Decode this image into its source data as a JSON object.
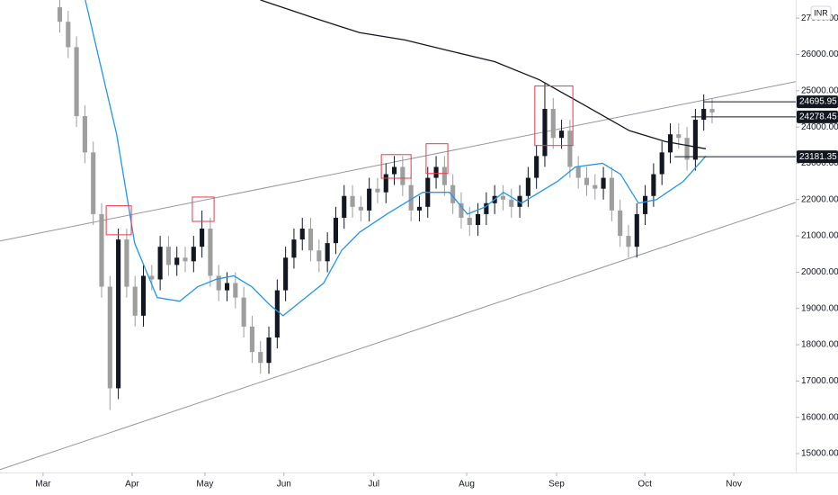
{
  "chart_data": {
    "type": "candlestick",
    "currency": "INR",
    "x": [
      4,
      6,
      8,
      10,
      12,
      14,
      16,
      18,
      20,
      22,
      24,
      26,
      28,
      30,
      32,
      34,
      36,
      38,
      40,
      42,
      44,
      46,
      48,
      50,
      52,
      54,
      56,
      58,
      60,
      62,
      64,
      66,
      68,
      70,
      72,
      74,
      76,
      78,
      80,
      82,
      84,
      86,
      88,
      90,
      92,
      94,
      96,
      98,
      100,
      102,
      104,
      106,
      108,
      110,
      112,
      114,
      116,
      118,
      120,
      122,
      124,
      126,
      128,
      130,
      132,
      134,
      136,
      138,
      140,
      142,
      144,
      146,
      148,
      150,
      152,
      154,
      156,
      158,
      160
    ],
    "open": [
      27300,
      26900,
      26200,
      24300,
      23300,
      21600,
      19600,
      16800,
      20900,
      19600,
      18800,
      19900,
      19800,
      20700,
      20200,
      20400,
      20300,
      20700,
      21200,
      19900,
      19500,
      19700,
      19300,
      18500,
      17800,
      17500,
      18200,
      19500,
      20400,
      20900,
      21200,
      20600,
      20300,
      20800,
      21500,
      22100,
      21800,
      21700,
      22300,
      22200,
      22700,
      22900,
      22400,
      21700,
      21800,
      22600,
      22900,
      22400,
      21900,
      21500,
      21300,
      21600,
      21900,
      22100,
      22000,
      21800,
      22100,
      22600,
      23200,
      24500,
      23700,
      23900,
      22900,
      22600,
      22400,
      22300,
      22600,
      21700,
      21000,
      20700,
      21600,
      22100,
      22700,
      23300,
      23800,
      23700,
      23100,
      24200,
      24500
    ],
    "high": [
      27600,
      27200,
      26500,
      24600,
      23600,
      21900,
      19900,
      21200,
      21200,
      19900,
      20200,
      20200,
      21000,
      21000,
      20700,
      20700,
      21000,
      21700,
      21500,
      20200,
      20000,
      20000,
      19600,
      18800,
      18100,
      18500,
      19800,
      20700,
      21200,
      21500,
      21500,
      20900,
      21100,
      21800,
      22400,
      22400,
      22100,
      22600,
      22600,
      23000,
      23200,
      23200,
      22700,
      22100,
      22900,
      23200,
      23200,
      22700,
      22200,
      21800,
      21900,
      22200,
      22400,
      22400,
      22300,
      22400,
      22900,
      23500,
      25200,
      24800,
      24200,
      24200,
      23200,
      22900,
      22700,
      22900,
      22900,
      22000,
      21300,
      21900,
      22400,
      23000,
      23600,
      24100,
      24100,
      24000,
      24500,
      24900,
      24800
    ],
    "low": [
      26600,
      25900,
      24000,
      23000,
      21300,
      19300,
      16200,
      16500,
      19300,
      18500,
      18500,
      19500,
      19500,
      19900,
      19900,
      20000,
      20000,
      20400,
      19600,
      19200,
      19200,
      19000,
      18200,
      17500,
      17200,
      17200,
      17900,
      19200,
      20100,
      20600,
      20300,
      20000,
      20000,
      20500,
      21200,
      21500,
      21400,
      21400,
      21900,
      21900,
      22400,
      22100,
      21400,
      21400,
      21500,
      22300,
      22100,
      21600,
      21200,
      21000,
      21000,
      21300,
      21600,
      21700,
      21500,
      21500,
      21800,
      22300,
      22900,
      23400,
      23400,
      22600,
      22300,
      22100,
      22000,
      22000,
      21400,
      20700,
      20400,
      20400,
      21300,
      21800,
      22400,
      23000,
      23400,
      22800,
      22800,
      23900,
      24100
    ],
    "close": [
      26900,
      26200,
      24300,
      23300,
      21600,
      19600,
      16800,
      20900,
      19600,
      18800,
      19900,
      19800,
      20700,
      20200,
      20400,
      20300,
      20700,
      21200,
      19900,
      19500,
      19700,
      19300,
      18500,
      17800,
      17500,
      18200,
      19500,
      20400,
      20900,
      21200,
      20600,
      20300,
      20800,
      21500,
      22100,
      21800,
      21700,
      22300,
      22200,
      22700,
      22900,
      22400,
      21700,
      21800,
      22600,
      22900,
      22400,
      21900,
      21500,
      21300,
      21600,
      21900,
      22100,
      22000,
      21800,
      22100,
      22600,
      23200,
      24500,
      23700,
      23900,
      22900,
      22600,
      22400,
      22300,
      22600,
      21700,
      21000,
      20700,
      21600,
      22100,
      22700,
      23300,
      23800,
      23700,
      23100,
      24200,
      24500,
      24400
    ],
    "up_color": "#131722",
    "down_color": "#9e9e9e",
    "xlim": [
      -10.3,
      180
    ],
    "ylim": [
      14480,
      27500
    ],
    "xticks": [
      {
        "value": 0,
        "label": "Mar"
      },
      {
        "value": 21.3,
        "label": "Apr"
      },
      {
        "value": 38.7,
        "label": "May"
      },
      {
        "value": 57.6,
        "label": "Jun"
      },
      {
        "value": 79.1,
        "label": "Jul"
      },
      {
        "value": 101.3,
        "label": "Aug"
      },
      {
        "value": 122.8,
        "label": "Sep"
      },
      {
        "value": 143.9,
        "label": "Oct"
      },
      {
        "value": 165.2,
        "label": "Nov"
      }
    ],
    "yticks": [
      {
        "value": 15000,
        "label": "15000.00"
      },
      {
        "value": 16000,
        "label": "16000.00"
      },
      {
        "value": 17000,
        "label": "17000.00"
      },
      {
        "value": 18000,
        "label": "18000.00"
      },
      {
        "value": 19000,
        "label": "19000.00"
      },
      {
        "value": 20000,
        "label": "20000.00"
      },
      {
        "value": 21000,
        "label": "21000.00"
      },
      {
        "value": 22000,
        "label": "22000.00"
      },
      {
        "value": 23000,
        "label": "23000.00"
      },
      {
        "value": 24000,
        "label": "24000.00"
      },
      {
        "value": 25000,
        "label": "25000.00"
      },
      {
        "value": 26000,
        "label": "26000.00"
      },
      {
        "value": 27000,
        "label": "27000.00"
      }
    ],
    "lines": [
      {
        "color": "#2196f3",
        "x": [
          10.1,
          17.6,
          21.9,
          27.3,
          32.7,
          37.0,
          41.3,
          45.6,
          49.9,
          54.2,
          57.4,
          62.8,
          67.1,
          71.4,
          75.7,
          82.2,
          90.8,
          97.2,
          101.5,
          105.8,
          110.1,
          114.4,
          118.7,
          123.0,
          127.3,
          133.8,
          138.1,
          142.4,
          146.7,
          153.1,
          158.5
        ],
        "values": [
          27500,
          23800,
          20800,
          19300,
          19200,
          19600,
          19800,
          19900,
          19600,
          19100,
          18800,
          19300,
          19700,
          20600,
          21100,
          21600,
          22200,
          22200,
          21600,
          21800,
          22200,
          21900,
          22200,
          22500,
          22900,
          23000,
          22700,
          21900,
          22000,
          22500,
          23200
        ]
      },
      {
        "color": "#131722",
        "x": [
          52.0,
          64.9,
          75.7,
          86.5,
          97.2,
          108.0,
          118.7,
          129.5,
          140.2,
          148.8,
          158.5
        ],
        "values": [
          27500,
          27000,
          26600,
          26400,
          26100,
          25800,
          25300,
          24600,
          23900,
          23600,
          23400
        ]
      }
    ],
    "trendlines": [
      {
        "color": "#9598a1",
        "x": [
          -10.3,
          180
        ],
        "values": [
          20860,
          25250
        ]
      },
      {
        "color": "#9598a1",
        "x": [
          -10.3,
          180
        ],
        "values": [
          14560,
          21920
        ]
      }
    ],
    "boxes": [
      {
        "color": "#f23645",
        "x": [
          15.1,
          21.1
        ],
        "y": [
          21030,
          21830
        ]
      },
      {
        "color": "#f23645",
        "x": [
          35.7,
          40.9
        ],
        "y": [
          21400,
          22070
        ]
      },
      {
        "color": "#f23645",
        "x": [
          80.9,
          88.0
        ],
        "y": [
          22590,
          23240
        ]
      },
      {
        "color": "#f23645",
        "x": [
          91.6,
          96.8
        ],
        "y": [
          22720,
          23540
        ]
      },
      {
        "color": "#f23645",
        "x": [
          117.6,
          126.7
        ],
        "y": [
          23490,
          25130
        ]
      }
    ],
    "levels": [
      {
        "value": 24695.95,
        "x": 158
      },
      {
        "value": 24278.45,
        "x": 155
      },
      {
        "value": 23181.35,
        "x": 151
      }
    ]
  }
}
